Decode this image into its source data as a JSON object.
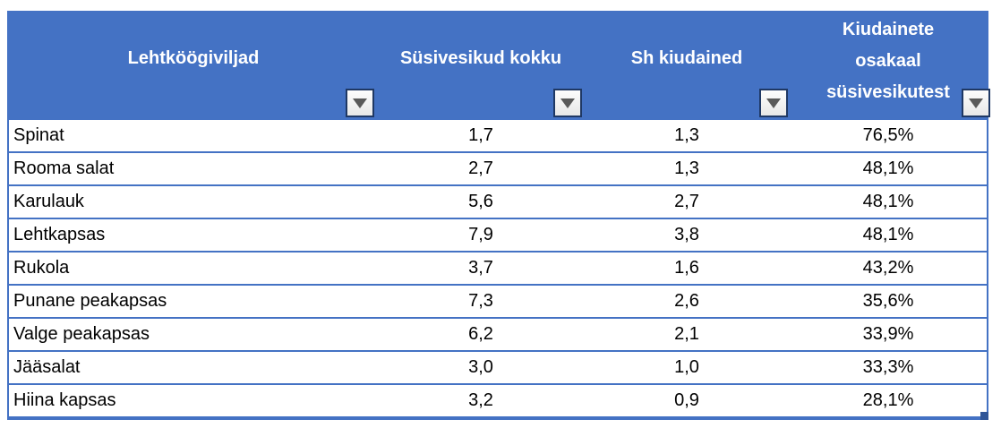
{
  "table": {
    "columns": [
      {
        "label": "Lehtköögiviljad"
      },
      {
        "label": "Süsivesikud kokku"
      },
      {
        "label": "Sh kiudained"
      },
      {
        "label": "Kiudainete osakaal süsivesikutest",
        "lines": [
          "Kiudainete",
          "osakaal",
          "süsivesikutest"
        ]
      }
    ],
    "rows": [
      {
        "name": "Spinat",
        "carbs": "1,7",
        "fiber": "1,3",
        "share": "76,5%"
      },
      {
        "name": "Rooma salat",
        "carbs": "2,7",
        "fiber": "1,3",
        "share": "48,1%"
      },
      {
        "name": "Karulauk",
        "carbs": "5,6",
        "fiber": "2,7",
        "share": "48,1%"
      },
      {
        "name": "Lehtkapsas",
        "carbs": "7,9",
        "fiber": "3,8",
        "share": "48,1%"
      },
      {
        "name": "Rukola",
        "carbs": "3,7",
        "fiber": "1,6",
        "share": "43,2%"
      },
      {
        "name": "Punane peakapsas",
        "carbs": "7,3",
        "fiber": "2,6",
        "share": "35,6%"
      },
      {
        "name": "Valge peakapsas",
        "carbs": "6,2",
        "fiber": "2,1",
        "share": "33,9%"
      },
      {
        "name": "Jääsalat",
        "carbs": "3,0",
        "fiber": "1,0",
        "share": "33,3%"
      },
      {
        "name": "Hiina kapsas",
        "carbs": "3,2",
        "fiber": "0,9",
        "share": "28,1%"
      }
    ],
    "icons": {
      "filter_dropdown": "down-triangle"
    },
    "colors": {
      "header_bg": "#4472C4",
      "header_text": "#FFFFFF",
      "row_border": "#4472C4",
      "outer_border": "#4472C4",
      "filter_button_border": "#1F3864",
      "filter_button_bg": "#F2F2F2",
      "filter_arrow": "#595959",
      "resize_handle": "#2F5597",
      "cell_text": "#000000"
    }
  }
}
